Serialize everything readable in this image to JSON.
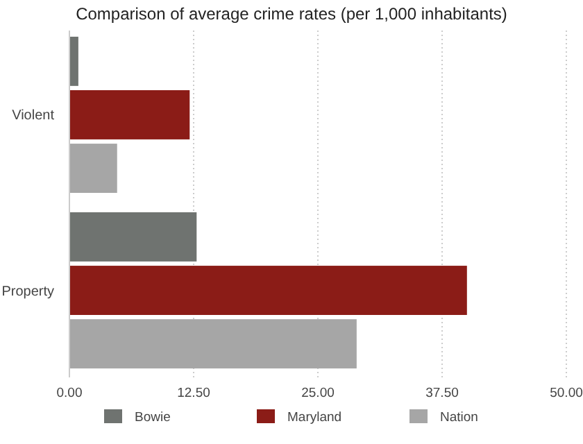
{
  "chart_data": {
    "type": "bar",
    "orientation": "horizontal",
    "title": "Comparison of average crime rates (per 1,000 inhabitants)",
    "categories": [
      "Violent",
      "Property"
    ],
    "series": [
      {
        "name": "Bowie",
        "color": "#6f7370",
        "values": [
          0.9,
          12.8
        ]
      },
      {
        "name": "Maryland",
        "color": "#8b1c17",
        "values": [
          12.1,
          40.0
        ]
      },
      {
        "name": "Nation",
        "color": "#a6a6a6",
        "values": [
          4.8,
          28.9
        ]
      }
    ],
    "xlim": [
      0,
      50
    ],
    "xticks": [
      {
        "value": 0,
        "label": "0.00"
      },
      {
        "value": 12.5,
        "label": "12.50"
      },
      {
        "value": 25,
        "label": "25.00"
      },
      {
        "value": 37.5,
        "label": "37.50"
      },
      {
        "value": 50,
        "label": "50.00"
      }
    ],
    "grid": "x",
    "legend": "bottom"
  }
}
